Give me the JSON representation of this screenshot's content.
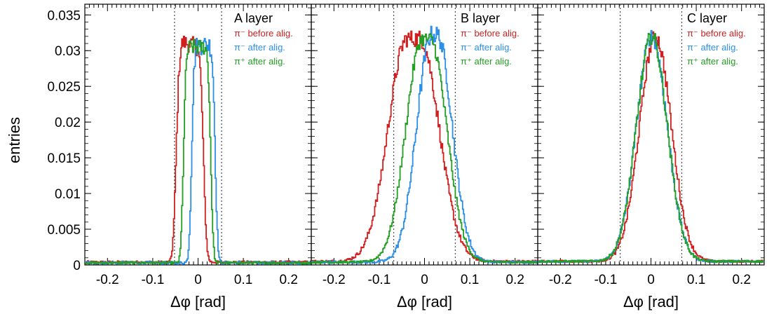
{
  "chart_data": {
    "type": "line",
    "ylabel": "entries",
    "ylim": [
      0,
      0.0365
    ],
    "xlim": [
      -0.25,
      0.25
    ],
    "yticks": [
      0,
      0.005,
      0.01,
      0.015,
      0.02,
      0.025,
      0.03,
      0.035
    ],
    "ytick_labels": [
      "0",
      "0.005",
      "0.01",
      "0.015",
      "0.02",
      "0.025",
      "0.03",
      "0.035"
    ],
    "xticks": [
      -0.2,
      -0.1,
      0,
      0.1,
      0.2
    ],
    "xtick_labels": [
      "-0.2",
      "-0.1",
      "0",
      "0.1",
      "0.2"
    ],
    "series_styles": [
      {
        "key": "pim_before",
        "color": "#d01f1f",
        "label": "π⁻ before alig."
      },
      {
        "key": "pim_after",
        "color": "#2b8fe8",
        "label": "π⁻ after alig."
      },
      {
        "key": "pip_after",
        "color": "#239f23",
        "label": "π⁺ after alig."
      }
    ],
    "panels": [
      {
        "title": "A layer",
        "xlabel": "Δφ [rad]",
        "cut_lines": [
          -0.052,
          0.052
        ],
        "series": [
          {
            "key": "pim_before",
            "shape": "box",
            "center": -0.018,
            "half_width": 0.03,
            "edge": 0.008,
            "height": 0.0305,
            "skew": -0.02,
            "tail": 0.0004,
            "noise": 0.0012
          },
          {
            "key": "pim_after",
            "shape": "box",
            "center": 0.012,
            "half_width": 0.026,
            "edge": 0.0065,
            "height": 0.0305,
            "skew": 0.0,
            "tail": 0.0003,
            "noise": 0.0014
          },
          {
            "key": "pip_after",
            "shape": "box",
            "center": -0.002,
            "half_width": 0.03,
            "edge": 0.0065,
            "height": 0.0302,
            "skew": 0.0,
            "tail": 0.0003,
            "noise": 0.0011
          }
        ]
      },
      {
        "title": "B layer",
        "xlabel": "Δφ [rad]",
        "cut_lines": [
          -0.068,
          0.068
        ],
        "series": [
          {
            "key": "pim_before",
            "shape": "gauss",
            "center": -0.024,
            "sigma": 0.042,
            "plateau": 0.028,
            "height": 0.0312,
            "tail": 0.0005,
            "noise": 0.0012
          },
          {
            "key": "pim_after",
            "shape": "gauss",
            "center": 0.022,
            "sigma": 0.033,
            "plateau": 0.012,
            "height": 0.0318,
            "tail": 0.0004,
            "noise": 0.0013
          },
          {
            "key": "pip_after",
            "shape": "gauss",
            "center": 0.004,
            "sigma": 0.036,
            "plateau": 0.018,
            "height": 0.0312,
            "tail": 0.0004,
            "noise": 0.001
          }
        ]
      },
      {
        "title": "C layer",
        "xlabel": "Δφ [rad]",
        "cut_lines": [
          -0.068,
          0.068
        ],
        "series": [
          {
            "key": "pim_before",
            "shape": "gauss",
            "center": 0.01,
            "sigma": 0.035,
            "plateau": 0.0,
            "height": 0.0315,
            "tail": 0.0005,
            "noise": 0.0011
          },
          {
            "key": "pim_after",
            "shape": "gauss",
            "center": 0.002,
            "sigma": 0.034,
            "plateau": 0.0,
            "height": 0.0315,
            "tail": 0.0005,
            "noise": 0.0011
          },
          {
            "key": "pip_after",
            "shape": "gauss",
            "center": 0.002,
            "sigma": 0.034,
            "plateau": 0.0,
            "height": 0.0315,
            "tail": 0.0005,
            "noise": 0.0011
          }
        ]
      }
    ]
  }
}
